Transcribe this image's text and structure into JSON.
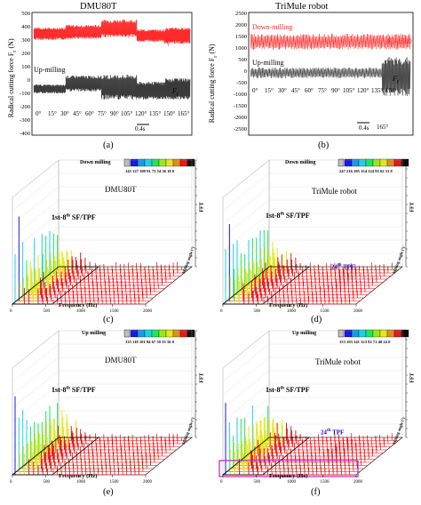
{
  "panels": {
    "a": {
      "title": "DMU80T",
      "caption": "(a)",
      "ylabel": "Radical cutting force F",
      "ylabel_sub": "r",
      "ylabel_unit": " (N)",
      "yticks": [
        "500",
        "400",
        "300",
        "200",
        "100",
        "0",
        "-100",
        "-200",
        "-300",
        "-400"
      ],
      "label_down": "Down-milling",
      "label_up": "Up-milling",
      "curve_label_top": "F",
      "curve_label_top_sub": "r",
      "curve_label_top_suffix": "+500",
      "curve_label_bot": "F",
      "curve_label_bot_sub": "r",
      "angles": [
        "0°",
        "15°",
        "30°",
        "45°",
        "60°",
        "75°",
        "90°",
        "105°",
        "120°",
        "135°",
        "150°",
        "165°"
      ],
      "scale": "0.4s"
    },
    "b": {
      "title": "TriMule robot",
      "caption": "(b)",
      "ylabel": "Radical cutting force F",
      "ylabel_sub": "r",
      "ylabel_unit": " (N)",
      "yticks": [
        "2500",
        "2000",
        "1500",
        "1000",
        "500",
        "0",
        "-500",
        "-1000",
        "-1500",
        "-2000",
        "-2500"
      ],
      "label_down": "Down-milling",
      "label_up": "Up-milling",
      "curve_label_top": "F",
      "curve_label_top_sub": "r",
      "curve_label_top_suffix": "+1500",
      "curve_label_bot": "F",
      "curve_label_bot_sub": "r",
      "angles": [
        "0°",
        "15°",
        "30°",
        "45°",
        "60°",
        "75°",
        "90°",
        "105°",
        "120°",
        "135°",
        "150°"
      ],
      "extra_angle": "165°",
      "scale": "0.4s"
    },
    "c": {
      "title": "DMU80T",
      "caption": "(c)",
      "mode": "Down milling",
      "bar_ticks": "145 127 109 91 73 54 36 18 0",
      "annotation": "1st-8",
      "annotation_sup": "th",
      "annotation_tail": " SF/TPF",
      "xlabel": "Frequency (Hz)",
      "xticks": [
        "0",
        "500",
        "1000",
        "1500",
        "2000"
      ],
      "zlabel": "FFT",
      "zticks": [
        "120",
        "110",
        "100",
        "90",
        "80",
        "70",
        "60",
        "50",
        "40",
        "30",
        "20",
        "10",
        "0"
      ],
      "depth_label": "Milling angle (°)"
    },
    "d": {
      "title": "TriMule robot",
      "caption": "(d)",
      "mode": "Down milling",
      "bar_ticks": "247 216 185 154 124 93 62 31 0",
      "annotation": "1st-8",
      "annotation_sup": "th",
      "annotation_tail": " SF/TPF",
      "tpf": "24",
      "tpf_sup": "th",
      "tpf_tail": " TPF",
      "xlabel": "Frequency (Hz)",
      "xticks": [
        "0",
        "500",
        "1000",
        "1500",
        "2000"
      ],
      "zlabel": "FFT",
      "zticks": [
        "200",
        "180",
        "160",
        "140",
        "120",
        "100",
        "80",
        "60",
        "40",
        "20",
        "0"
      ],
      "depth_label": "Milling angle (°)"
    },
    "e": {
      "title": "DMU80T",
      "caption": "(e)",
      "mode": "Up milling",
      "bar_ticks": "135 118 101 84 67 50 33 16 0",
      "annotation": "1st-8",
      "annotation_sup": "th",
      "annotation_tail": " SF/TPF",
      "xlabel": "Frequency (Hz)",
      "xticks": [
        "0",
        "500",
        "1000",
        "1500",
        "2000"
      ],
      "zlabel": "FFT",
      "zticks": [
        "120",
        "110",
        "100",
        "90",
        "80",
        "70",
        "60",
        "50",
        "40",
        "30",
        "20",
        "10",
        "0"
      ],
      "depth_label": "Milling angle (°)"
    },
    "f": {
      "title": "TriMule robot",
      "caption": "(f)",
      "mode": "Up milling",
      "bar_ticks": "153 103 141 123 82 71 40 24 0",
      "annotation": "1st-8",
      "annotation_sup": "th",
      "annotation_tail": " SF/TPF",
      "tpf": "24",
      "tpf_sup": "th",
      "tpf_tail": " TPF",
      "xlabel": "Frequency (Hz)",
      "xticks": [
        "0",
        "500",
        "1000",
        "1500",
        "2000"
      ],
      "zlabel": "FFT",
      "zticks": [
        "120",
        "110",
        "100",
        "90",
        "80",
        "70",
        "60",
        "50",
        "40",
        "30",
        "20",
        "10",
        "0"
      ],
      "depth_label": "Milling angle (°)"
    }
  },
  "colors": {
    "down": "#ff2a2a",
    "up": "#3a3a3a",
    "annotation_blue": "#1010d0",
    "highlight": "#c020c0"
  }
}
